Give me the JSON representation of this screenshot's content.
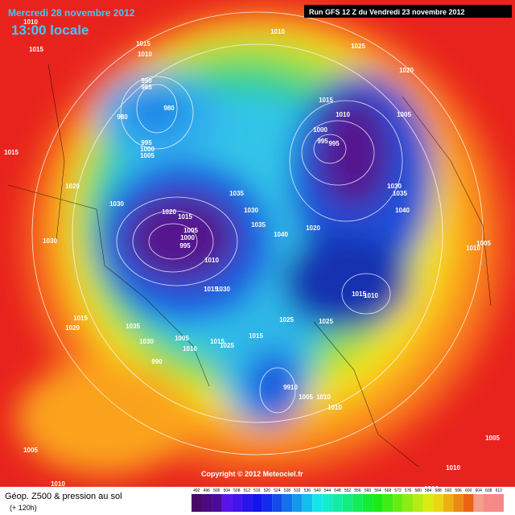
{
  "header": {
    "date": "Mercredi 28 novembre 2012",
    "time": "13:00 locale",
    "run": "Run GFS 12 Z du Vendredi 23 novembre 2012"
  },
  "copyright": "Copyright © 2012 Meteociel.fr",
  "footer": {
    "title": "Géop. Z500 & pression au sol",
    "lead": "(+ 120h)"
  },
  "scale": [
    "492",
    "496",
    "500",
    "504",
    "508",
    "512",
    "516",
    "520",
    "524",
    "528",
    "532",
    "536",
    "540",
    "544",
    "548",
    "552",
    "556",
    "560",
    "564",
    "568",
    "572",
    "576",
    "580",
    "584",
    "588",
    "592",
    "596",
    "600",
    "604",
    "608",
    "612"
  ],
  "isobars": [
    "1010",
    "1015",
    "1010",
    "1015",
    "1010",
    "1025",
    "1020",
    "990",
    "985",
    "980",
    "980",
    "1015",
    "1010",
    "1005",
    "1000",
    "995",
    "995",
    "995",
    "1000",
    "1005",
    "1015",
    "1020",
    "1030",
    "1035",
    "1030",
    "1020",
    "1015",
    "1030",
    "1035",
    "1040",
    "1035",
    "1040",
    "1020",
    "1005",
    "1000",
    "995",
    "1010",
    "1030",
    "1015",
    "1030",
    "1005",
    "1010",
    "1015",
    "1010",
    "1015",
    "1020",
    "1035",
    "1025",
    "1025",
    "1015",
    "1030",
    "1005",
    "1010",
    "1015",
    "1025",
    "990",
    "9910",
    "1005",
    "1010",
    "1010",
    "1005",
    "1010",
    "1005",
    "1010",
    "1010"
  ]
}
